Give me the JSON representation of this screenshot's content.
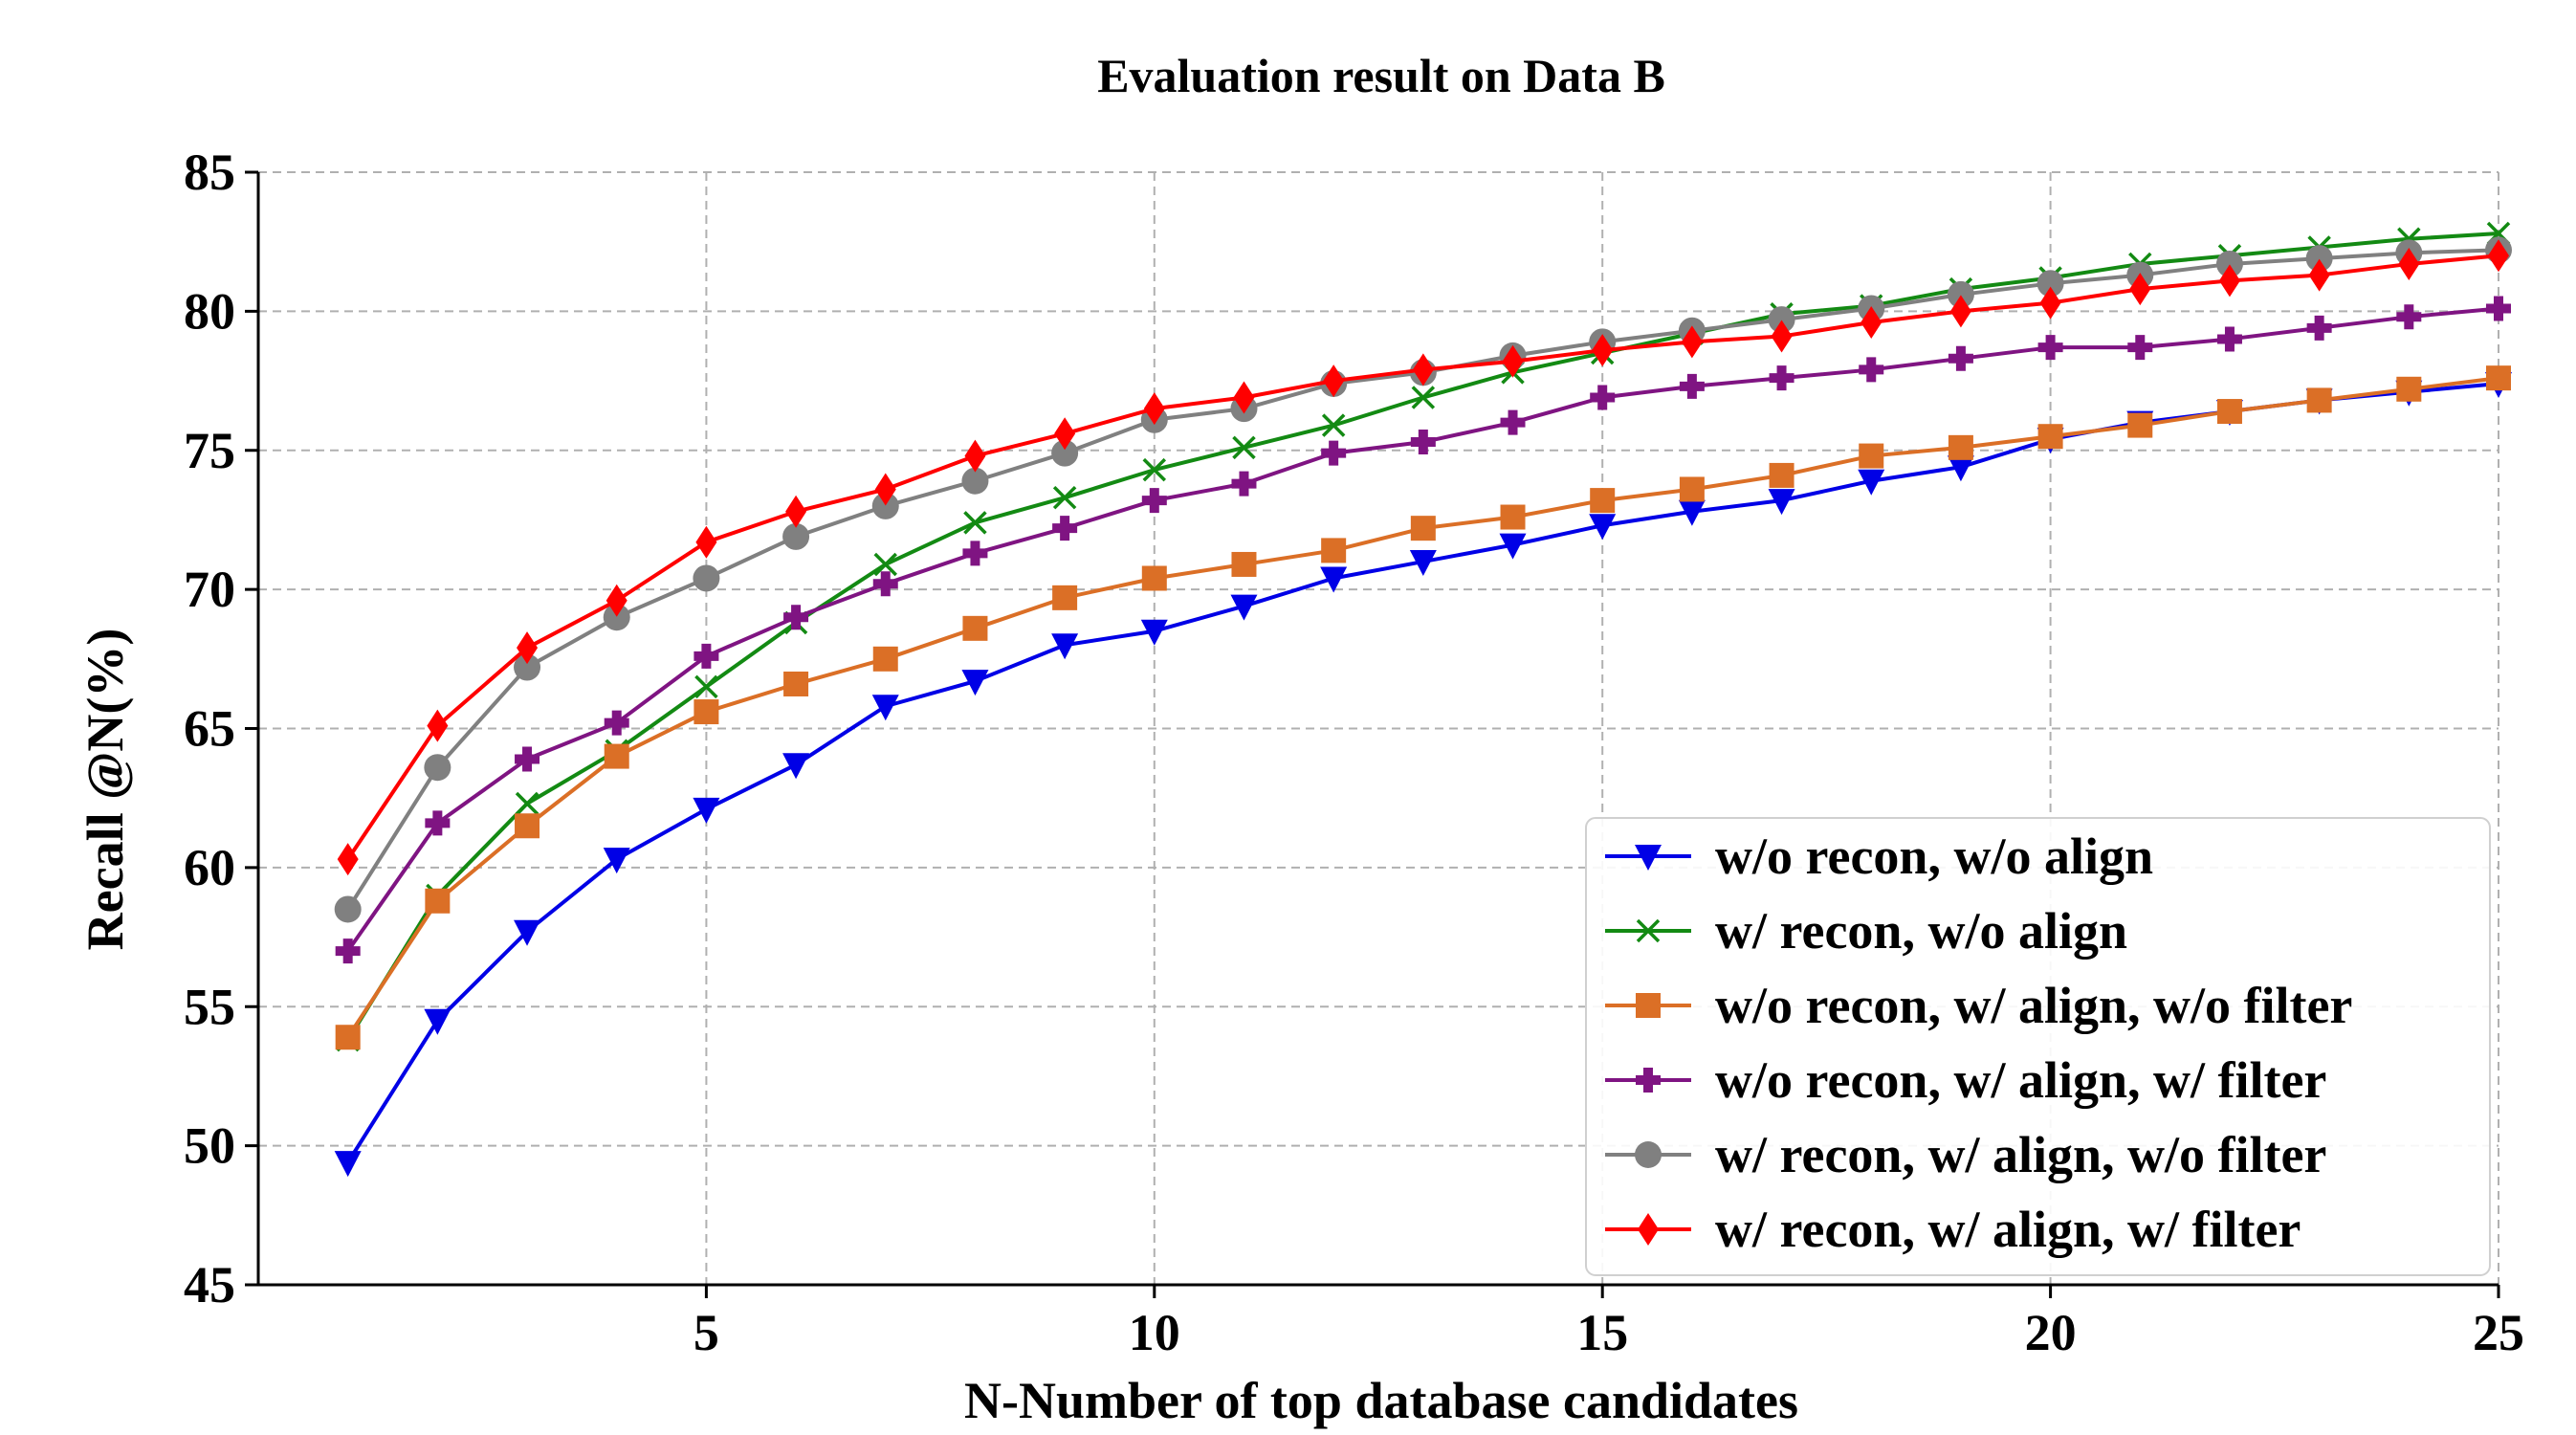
{
  "chart_data": {
    "type": "line",
    "title": "Evaluation result on Data B",
    "xlabel": "N-Number of top database candidates",
    "ylabel": "Recall @N(%)",
    "xlim": [
      0,
      25
    ],
    "ylim": [
      45,
      85
    ],
    "xticks": [
      5,
      10,
      15,
      20,
      25
    ],
    "yticks": [
      45,
      50,
      55,
      60,
      65,
      70,
      75,
      80,
      85
    ],
    "grid": true,
    "legend_position": "lower-right",
    "x": [
      1,
      2,
      3,
      4,
      5,
      6,
      7,
      8,
      9,
      10,
      11,
      12,
      13,
      14,
      15,
      16,
      17,
      18,
      19,
      20,
      21,
      22,
      23,
      24,
      25
    ],
    "series": [
      {
        "name": "w/o recon, w/o align",
        "color": "#0000e6",
        "marker": "triangle-down",
        "values": [
          49.4,
          54.5,
          57.7,
          60.3,
          62.1,
          63.7,
          65.8,
          66.7,
          68.0,
          68.5,
          69.4,
          70.4,
          71.0,
          71.6,
          72.3,
          72.8,
          73.2,
          73.9,
          74.4,
          75.4,
          76.0,
          76.4,
          76.8,
          77.1,
          77.4
        ]
      },
      {
        "name": "w/ recon, w/o align",
        "color": "#138a13",
        "marker": "x",
        "values": [
          53.8,
          59.0,
          62.3,
          64.2,
          66.5,
          68.8,
          70.9,
          72.4,
          73.3,
          74.3,
          75.1,
          75.9,
          76.9,
          77.8,
          78.5,
          79.2,
          79.9,
          80.2,
          80.8,
          81.2,
          81.7,
          82.0,
          82.3,
          82.6,
          82.8
        ]
      },
      {
        "name": "w/o recon, w/ align, w/o filter",
        "color": "#db6f26",
        "marker": "square",
        "values": [
          53.9,
          58.8,
          61.5,
          64.0,
          65.6,
          66.6,
          67.5,
          68.6,
          69.7,
          70.4,
          70.9,
          71.4,
          72.2,
          72.6,
          73.2,
          73.6,
          74.1,
          74.8,
          75.1,
          75.5,
          75.9,
          76.4,
          76.8,
          77.2,
          77.6
        ]
      },
      {
        "name": "w/o recon, w/ align, w/ filter",
        "color": "#7f1482",
        "marker": "plus",
        "values": [
          57.0,
          61.6,
          63.9,
          65.2,
          67.6,
          69.0,
          70.2,
          71.3,
          72.2,
          73.2,
          73.8,
          74.9,
          75.3,
          76.0,
          76.9,
          77.3,
          77.6,
          77.9,
          78.3,
          78.7,
          78.7,
          79.0,
          79.4,
          79.8,
          80.1
        ]
      },
      {
        "name": "w/ recon, w/ align, w/o filter",
        "color": "#808080",
        "marker": "circle",
        "values": [
          58.5,
          63.6,
          67.2,
          69.0,
          70.4,
          71.9,
          73.0,
          73.9,
          74.9,
          76.1,
          76.5,
          77.4,
          77.8,
          78.4,
          78.9,
          79.3,
          79.7,
          80.1,
          80.6,
          81.0,
          81.3,
          81.7,
          81.9,
          82.1,
          82.2
        ]
      },
      {
        "name": "w/ recon, w/ align, w/ filter",
        "color": "#ff0000",
        "marker": "diamond",
        "values": [
          60.3,
          65.1,
          67.9,
          69.6,
          71.7,
          72.8,
          73.6,
          74.8,
          75.6,
          76.5,
          76.9,
          77.5,
          77.9,
          78.2,
          78.6,
          78.9,
          79.1,
          79.6,
          80.0,
          80.3,
          80.8,
          81.1,
          81.3,
          81.7,
          82.0
        ]
      }
    ]
  }
}
